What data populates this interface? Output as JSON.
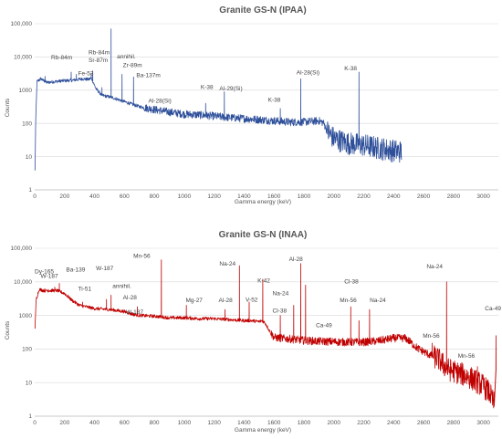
{
  "chart_data": [
    {
      "type": "line",
      "title": "Granite GS-N (IPAA)",
      "xlabel": "Gamma energy (keV)",
      "ylabel": "Counts",
      "color": "#2e4f9a",
      "xlim": [
        0,
        3100
      ],
      "x_ticks": [
        "0",
        "200",
        "400",
        "600",
        "800",
        "1000",
        "1200",
        "1400",
        "1600",
        "1800",
        "2000",
        "2200",
        "2400",
        "2600",
        "2800",
        "3000"
      ],
      "y_scale": "log",
      "ylim": [
        1,
        100000
      ],
      "y_ticks": [
        "1",
        "10",
        "100",
        "1000",
        "10,000",
        "100,000"
      ],
      "grid": true,
      "baseline": [
        [
          2,
          3
        ],
        [
          5,
          50
        ],
        [
          15,
          1800
        ],
        [
          40,
          2200
        ],
        [
          80,
          1700
        ],
        [
          130,
          1800
        ],
        [
          180,
          1900
        ],
        [
          260,
          2000
        ],
        [
          320,
          2200
        ],
        [
          360,
          2100
        ],
        [
          380,
          2300
        ],
        [
          410,
          1100
        ],
        [
          450,
          700
        ],
        [
          520,
          600
        ],
        [
          600,
          450
        ],
        [
          700,
          320
        ],
        [
          800,
          260
        ],
        [
          900,
          220
        ],
        [
          1000,
          190
        ],
        [
          1100,
          180
        ],
        [
          1200,
          165
        ],
        [
          1300,
          150
        ],
        [
          1400,
          140
        ],
        [
          1500,
          130
        ],
        [
          1600,
          120
        ],
        [
          1700,
          110
        ],
        [
          1800,
          110
        ],
        [
          1900,
          120
        ],
        [
          1930,
          105
        ],
        [
          1960,
          55
        ],
        [
          2000,
          35
        ],
        [
          2100,
          25
        ],
        [
          2200,
          22
        ],
        [
          2300,
          18
        ],
        [
          2400,
          15
        ],
        [
          2455,
          14
        ]
      ],
      "peaks": [
        {
          "x": 69,
          "y": 2600
        },
        {
          "x": 244,
          "y": 3500
        },
        {
          "x": 279,
          "y": 3000
        },
        {
          "x": 378,
          "y": 3200
        },
        {
          "x": 388,
          "y": 3800
        },
        {
          "x": 450,
          "y": 1200
        },
        {
          "x": 511,
          "y": 70000
        },
        {
          "x": 584,
          "y": 3000
        },
        {
          "x": 661,
          "y": 2500
        },
        {
          "x": 779,
          "y": 300
        },
        {
          "x": 1143,
          "y": 400
        },
        {
          "x": 1268,
          "y": 900
        },
        {
          "x": 1642,
          "y": 280
        },
        {
          "x": 1779,
          "y": 2200
        },
        {
          "x": 2168,
          "y": 3500
        }
      ],
      "annotations": [
        {
          "label": "Rb-84m",
          "x": 110,
          "y": 8500
        },
        {
          "label": "Rb-84m",
          "x": 360,
          "y": 12000
        },
        {
          "label": "annihil.",
          "x": 550,
          "y": 9000
        },
        {
          "label": "Sr-87m",
          "x": 360,
          "y": 7000
        },
        {
          "label": "Zr-89m",
          "x": 590,
          "y": 5000
        },
        {
          "label": "Fe-53",
          "x": 290,
          "y": 2800
        },
        {
          "label": "Ba-137m",
          "x": 680,
          "y": 2500
        },
        {
          "label": "K-38",
          "x": 1110,
          "y": 1100
        },
        {
          "label": "Al-29(Si)",
          "x": 1235,
          "y": 1000
        },
        {
          "label": "Al-28(Si)",
          "x": 1750,
          "y": 3000
        },
        {
          "label": "K-38",
          "x": 2070,
          "y": 4000
        },
        {
          "label": "Al-28(Si)",
          "x": 760,
          "y": 420
        },
        {
          "label": "K-38",
          "x": 1560,
          "y": 450
        }
      ]
    },
    {
      "type": "line",
      "title": "Granite GS-N (INAA)",
      "xlabel": "Gamma energy (keV)",
      "ylabel": "Counts",
      "color": "#c00000",
      "xlim": [
        0,
        3100
      ],
      "x_ticks": [
        "0",
        "200",
        "400",
        "600",
        "800",
        "1000",
        "1200",
        "1400",
        "1600",
        "1800",
        "2000",
        "2200",
        "2400",
        "2600",
        "2800",
        "3000"
      ],
      "y_scale": "log",
      "ylim": [
        1,
        100000
      ],
      "y_ticks": [
        "1",
        "10",
        "100",
        "1000",
        "10,000",
        "100,000"
      ],
      "grid": true,
      "baseline": [
        [
          2,
          400
        ],
        [
          10,
          3000
        ],
        [
          30,
          6000
        ],
        [
          60,
          5500
        ],
        [
          100,
          5500
        ],
        [
          150,
          5500
        ],
        [
          200,
          4500
        ],
        [
          250,
          2800
        ],
        [
          300,
          2000
        ],
        [
          400,
          1600
        ],
        [
          500,
          1500
        ],
        [
          600,
          1300
        ],
        [
          650,
          1100
        ],
        [
          700,
          1000
        ],
        [
          800,
          950
        ],
        [
          900,
          850
        ],
        [
          1000,
          850
        ],
        [
          1100,
          800
        ],
        [
          1200,
          800
        ],
        [
          1300,
          750
        ],
        [
          1400,
          700
        ],
        [
          1450,
          700
        ],
        [
          1500,
          650
        ],
        [
          1520,
          700
        ],
        [
          1540,
          600
        ],
        [
          1570,
          350
        ],
        [
          1600,
          220
        ],
        [
          1700,
          200
        ],
        [
          1800,
          180
        ],
        [
          1900,
          170
        ],
        [
          2000,
          165
        ],
        [
          2100,
          160
        ],
        [
          2200,
          160
        ],
        [
          2300,
          175
        ],
        [
          2400,
          210
        ],
        [
          2480,
          210
        ],
        [
          2520,
          150
        ],
        [
          2560,
          105
        ],
        [
          2620,
          75
        ],
        [
          2700,
          50
        ],
        [
          2760,
          25
        ],
        [
          2800,
          22
        ],
        [
          2900,
          15
        ],
        [
          3000,
          8
        ],
        [
          3040,
          5
        ],
        [
          3060,
          3
        ],
        [
          3070,
          2.5
        ],
        [
          3075,
          1
        ]
      ],
      "peaks": [
        {
          "x": 91,
          "y": 6000
        },
        {
          "x": 134,
          "y": 7000
        },
        {
          "x": 165,
          "y": 9000
        },
        {
          "x": 320,
          "y": 2500
        },
        {
          "x": 480,
          "y": 3000
        },
        {
          "x": 511,
          "y": 4000
        },
        {
          "x": 686,
          "y": 1800
        },
        {
          "x": 847,
          "y": 45000
        },
        {
          "x": 1014,
          "y": 2000
        },
        {
          "x": 1273,
          "y": 1500
        },
        {
          "x": 1369,
          "y": 30000
        },
        {
          "x": 1434,
          "y": 2500
        },
        {
          "x": 1525,
          "y": 12000
        },
        {
          "x": 1642,
          "y": 1000
        },
        {
          "x": 1732,
          "y": 2000
        },
        {
          "x": 1779,
          "y": 35000
        },
        {
          "x": 1811,
          "y": 8000
        },
        {
          "x": 2113,
          "y": 1800
        },
        {
          "x": 2168,
          "y": 700
        },
        {
          "x": 2239,
          "y": 1500
        },
        {
          "x": 2754,
          "y": 10000
        },
        {
          "x": 2657,
          "y": 150
        },
        {
          "x": 2960,
          "y": 30
        },
        {
          "x": 3084,
          "y": 250
        }
      ],
      "annotations": [
        {
          "label": "Dy-165",
          "x": 0,
          "y": 18000
        },
        {
          "label": "W-187",
          "x": 40,
          "y": 13000
        },
        {
          "label": "Ba-139",
          "x": 210,
          "y": 20000
        },
        {
          "label": "W-187",
          "x": 410,
          "y": 22000
        },
        {
          "label": "Mn-56",
          "x": 660,
          "y": 52000
        },
        {
          "label": "Ti-51",
          "x": 290,
          "y": 5500
        },
        {
          "label": "annihil.",
          "x": 520,
          "y": 6500
        },
        {
          "label": "Al-28",
          "x": 590,
          "y": 3000
        },
        {
          "label": "W-187",
          "x": 610,
          "y": 1100
        },
        {
          "label": "Na-24",
          "x": 1235,
          "y": 30000
        },
        {
          "label": "Al-28",
          "x": 1700,
          "y": 42000
        },
        {
          "label": "K-42",
          "x": 1490,
          "y": 9500
        },
        {
          "label": "Na-24",
          "x": 1590,
          "y": 4000
        },
        {
          "label": "Mg-27",
          "x": 1010,
          "y": 2500
        },
        {
          "label": "Al-28",
          "x": 1230,
          "y": 2500
        },
        {
          "label": "V-52",
          "x": 1410,
          "y": 2600
        },
        {
          "label": "Cl-38",
          "x": 1590,
          "y": 1200
        },
        {
          "label": "Cl-38",
          "x": 2070,
          "y": 9000
        },
        {
          "label": "Mn-56",
          "x": 2040,
          "y": 2500
        },
        {
          "label": "Na-24",
          "x": 2240,
          "y": 2500
        },
        {
          "label": "Ca-49",
          "x": 1880,
          "y": 450
        },
        {
          "label": "Na-24",
          "x": 2620,
          "y": 25000
        },
        {
          "label": "Mn-56",
          "x": 2595,
          "y": 220
        },
        {
          "label": "Mn-56",
          "x": 2830,
          "y": 55
        },
        {
          "label": "Ca-49",
          "x": 3010,
          "y": 1400
        }
      ]
    }
  ]
}
